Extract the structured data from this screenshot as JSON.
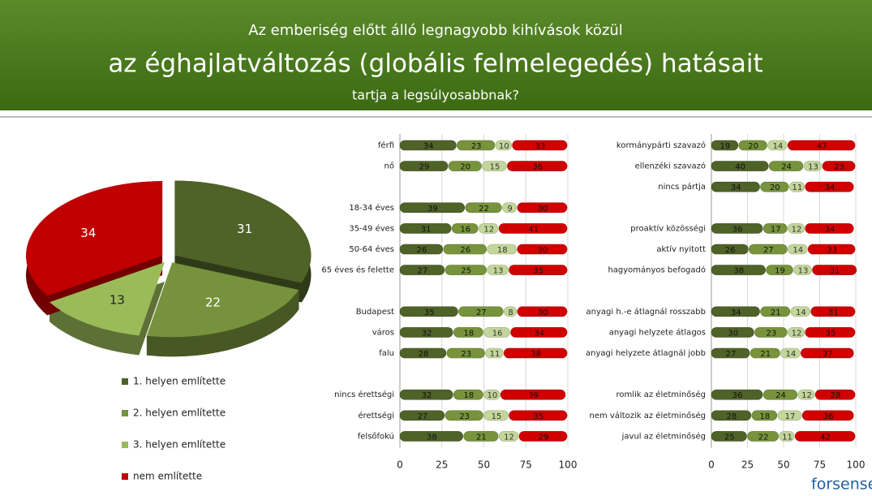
{
  "header": {
    "lines": [
      "Az emberiség előtt álló legnagyobb kihívások közül",
      "az éghajlatváltozás (globális felmelegedés) hatásait",
      "tartja a legsúlyosabbnak?"
    ]
  },
  "logo": "forsense",
  "chart_data": [
    {
      "type": "pie",
      "categories": [
        "1. helyen említette",
        "2. helyen említette",
        "3. helyen említette",
        "nem említette"
      ],
      "values": [
        31,
        22,
        13,
        34
      ],
      "colors": [
        "#4f6228",
        "#76923c",
        "#9bbb59",
        "#c00000"
      ],
      "legend": "bottom"
    },
    {
      "type": "bar",
      "orientation": "horizontal",
      "stacked": true,
      "categories": [
        "férfi",
        "nő",
        null,
        "18-34 éves",
        "35-49 éves",
        "50-64 éves",
        "65 éves és felette",
        null,
        "Budapest",
        "város",
        "falu",
        null,
        "nincs érettségi",
        "érettségi",
        "felsőfokú"
      ],
      "series": [
        {
          "color": "#4f6228",
          "values": [
            34,
            29,
            null,
            39,
            31,
            26,
            27,
            null,
            35,
            32,
            28,
            null,
            32,
            27,
            38
          ]
        },
        {
          "color": "#77933c",
          "values": [
            23,
            20,
            null,
            22,
            16,
            26,
            25,
            null,
            27,
            18,
            23,
            null,
            18,
            23,
            21
          ]
        },
        {
          "color": "#c3d69b",
          "values": [
            10,
            15,
            null,
            9,
            12,
            18,
            13,
            null,
            8,
            16,
            11,
            null,
            10,
            15,
            12
          ]
        },
        {
          "color": "#d00000",
          "values": [
            33,
            36,
            null,
            30,
            41,
            30,
            35,
            null,
            30,
            34,
            38,
            null,
            39,
            35,
            29
          ]
        }
      ],
      "xlim": [
        0,
        100
      ],
      "xticks": [
        0,
        25,
        50,
        75,
        100
      ],
      "grid": true
    },
    {
      "type": "bar",
      "orientation": "horizontal",
      "stacked": true,
      "categories": [
        "kormánypárti szavazó",
        "ellenzéki szavazó",
        "nincs pártja",
        null,
        "proaktív közösségi",
        "aktív nyitott",
        "hagyományos befogadó",
        null,
        "anyagi h.-e átlagnál rosszabb",
        "anyagi helyzete átlagos",
        "anyagi helyzete átlagnál jobb",
        null,
        "romlik az életminőség",
        "nem változik az életminőség",
        "javul az életminőség"
      ],
      "series": [
        {
          "color": "#4f6228",
          "values": [
            19,
            40,
            34,
            null,
            36,
            26,
            38,
            null,
            34,
            30,
            27,
            null,
            36,
            28,
            25
          ]
        },
        {
          "color": "#77933c",
          "values": [
            20,
            24,
            20,
            null,
            17,
            27,
            19,
            null,
            21,
            23,
            21,
            null,
            24,
            18,
            22
          ]
        },
        {
          "color": "#c3d69b",
          "values": [
            14,
            13,
            11,
            null,
            12,
            14,
            13,
            null,
            14,
            12,
            14,
            null,
            12,
            17,
            11
          ]
        },
        {
          "color": "#d00000",
          "values": [
            47,
            23,
            34,
            null,
            34,
            33,
            31,
            null,
            31,
            35,
            37,
            null,
            28,
            36,
            42
          ]
        }
      ],
      "xlim": [
        0,
        100
      ],
      "xticks": [
        0,
        25,
        50,
        75,
        100
      ],
      "grid": true
    }
  ]
}
